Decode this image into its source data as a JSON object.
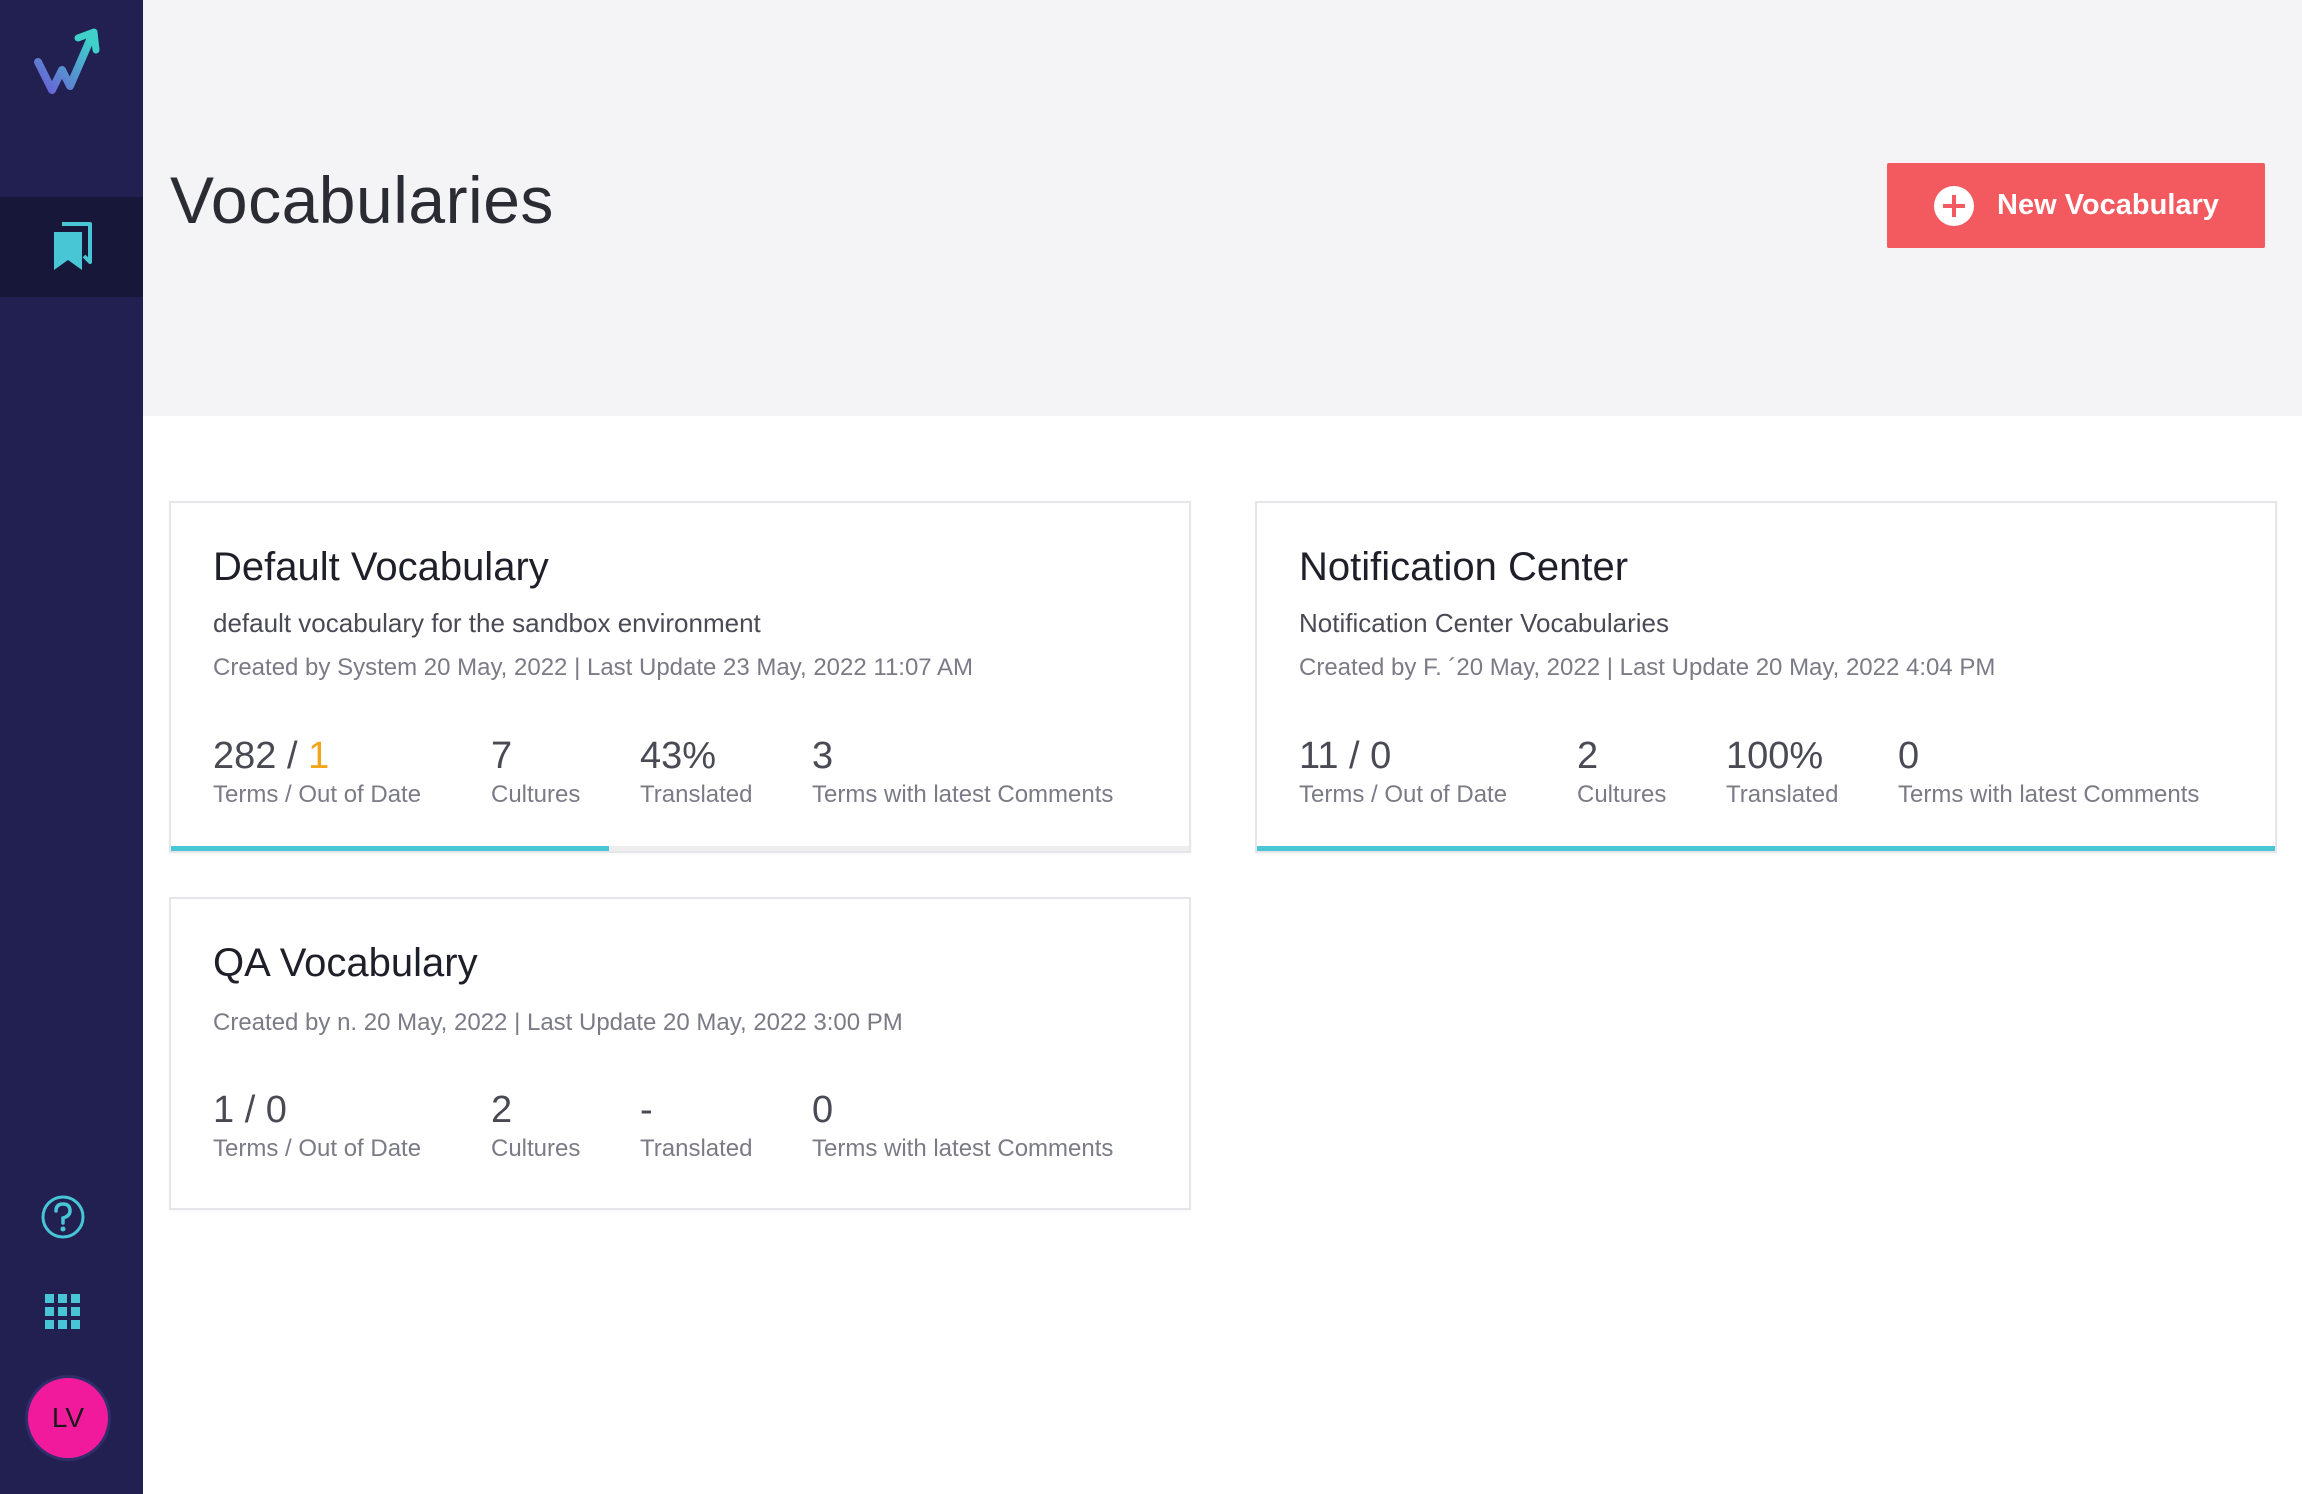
{
  "app": {
    "accent_color": "#49c6d6",
    "sidebar_color": "#212050",
    "user_initials": "LV"
  },
  "header": {
    "title": "Vocabularies",
    "new_button_label": "New Vocabulary"
  },
  "cards": [
    {
      "title": "Default Vocabulary",
      "description": "default vocabulary for the sandbox environment",
      "meta": "Created by System 20 May, 2022 | Last Update 23 May, 2022 11:07 AM",
      "terms": "282",
      "terms_sep": " / ",
      "out_of_date": "1",
      "terms_label": "Terms / Out of Date",
      "cultures": "7",
      "cultures_label": "Cultures",
      "translated": "43%",
      "translated_label": "Translated",
      "comments": "3",
      "comments_label": "Terms with latest Comments",
      "progress": 0.43
    },
    {
      "title": "Notification Center",
      "description": "Notification Center Vocabularies",
      "meta": "Created by F. ´20 May, 2022 | Last Update 20 May, 2022 4:04 PM",
      "terms": "11 / 0",
      "terms_label": "Terms / Out of Date",
      "cultures": "2",
      "cultures_label": "Cultures",
      "translated": "100%",
      "translated_label": "Translated",
      "comments": "0",
      "comments_label": "Terms with latest Comments",
      "progress": 1.0
    },
    {
      "title": "QA Vocabulary",
      "meta": "Created by n.  20 May, 2022 | Last Update 20 May, 2022 3:00 PM",
      "terms": "1 / 0",
      "terms_label": "Terms / Out of Date",
      "cultures": "2",
      "cultures_label": "Cultures",
      "translated": "-",
      "translated_label": "Translated",
      "comments": "0",
      "comments_label": "Terms with latest Comments"
    }
  ]
}
